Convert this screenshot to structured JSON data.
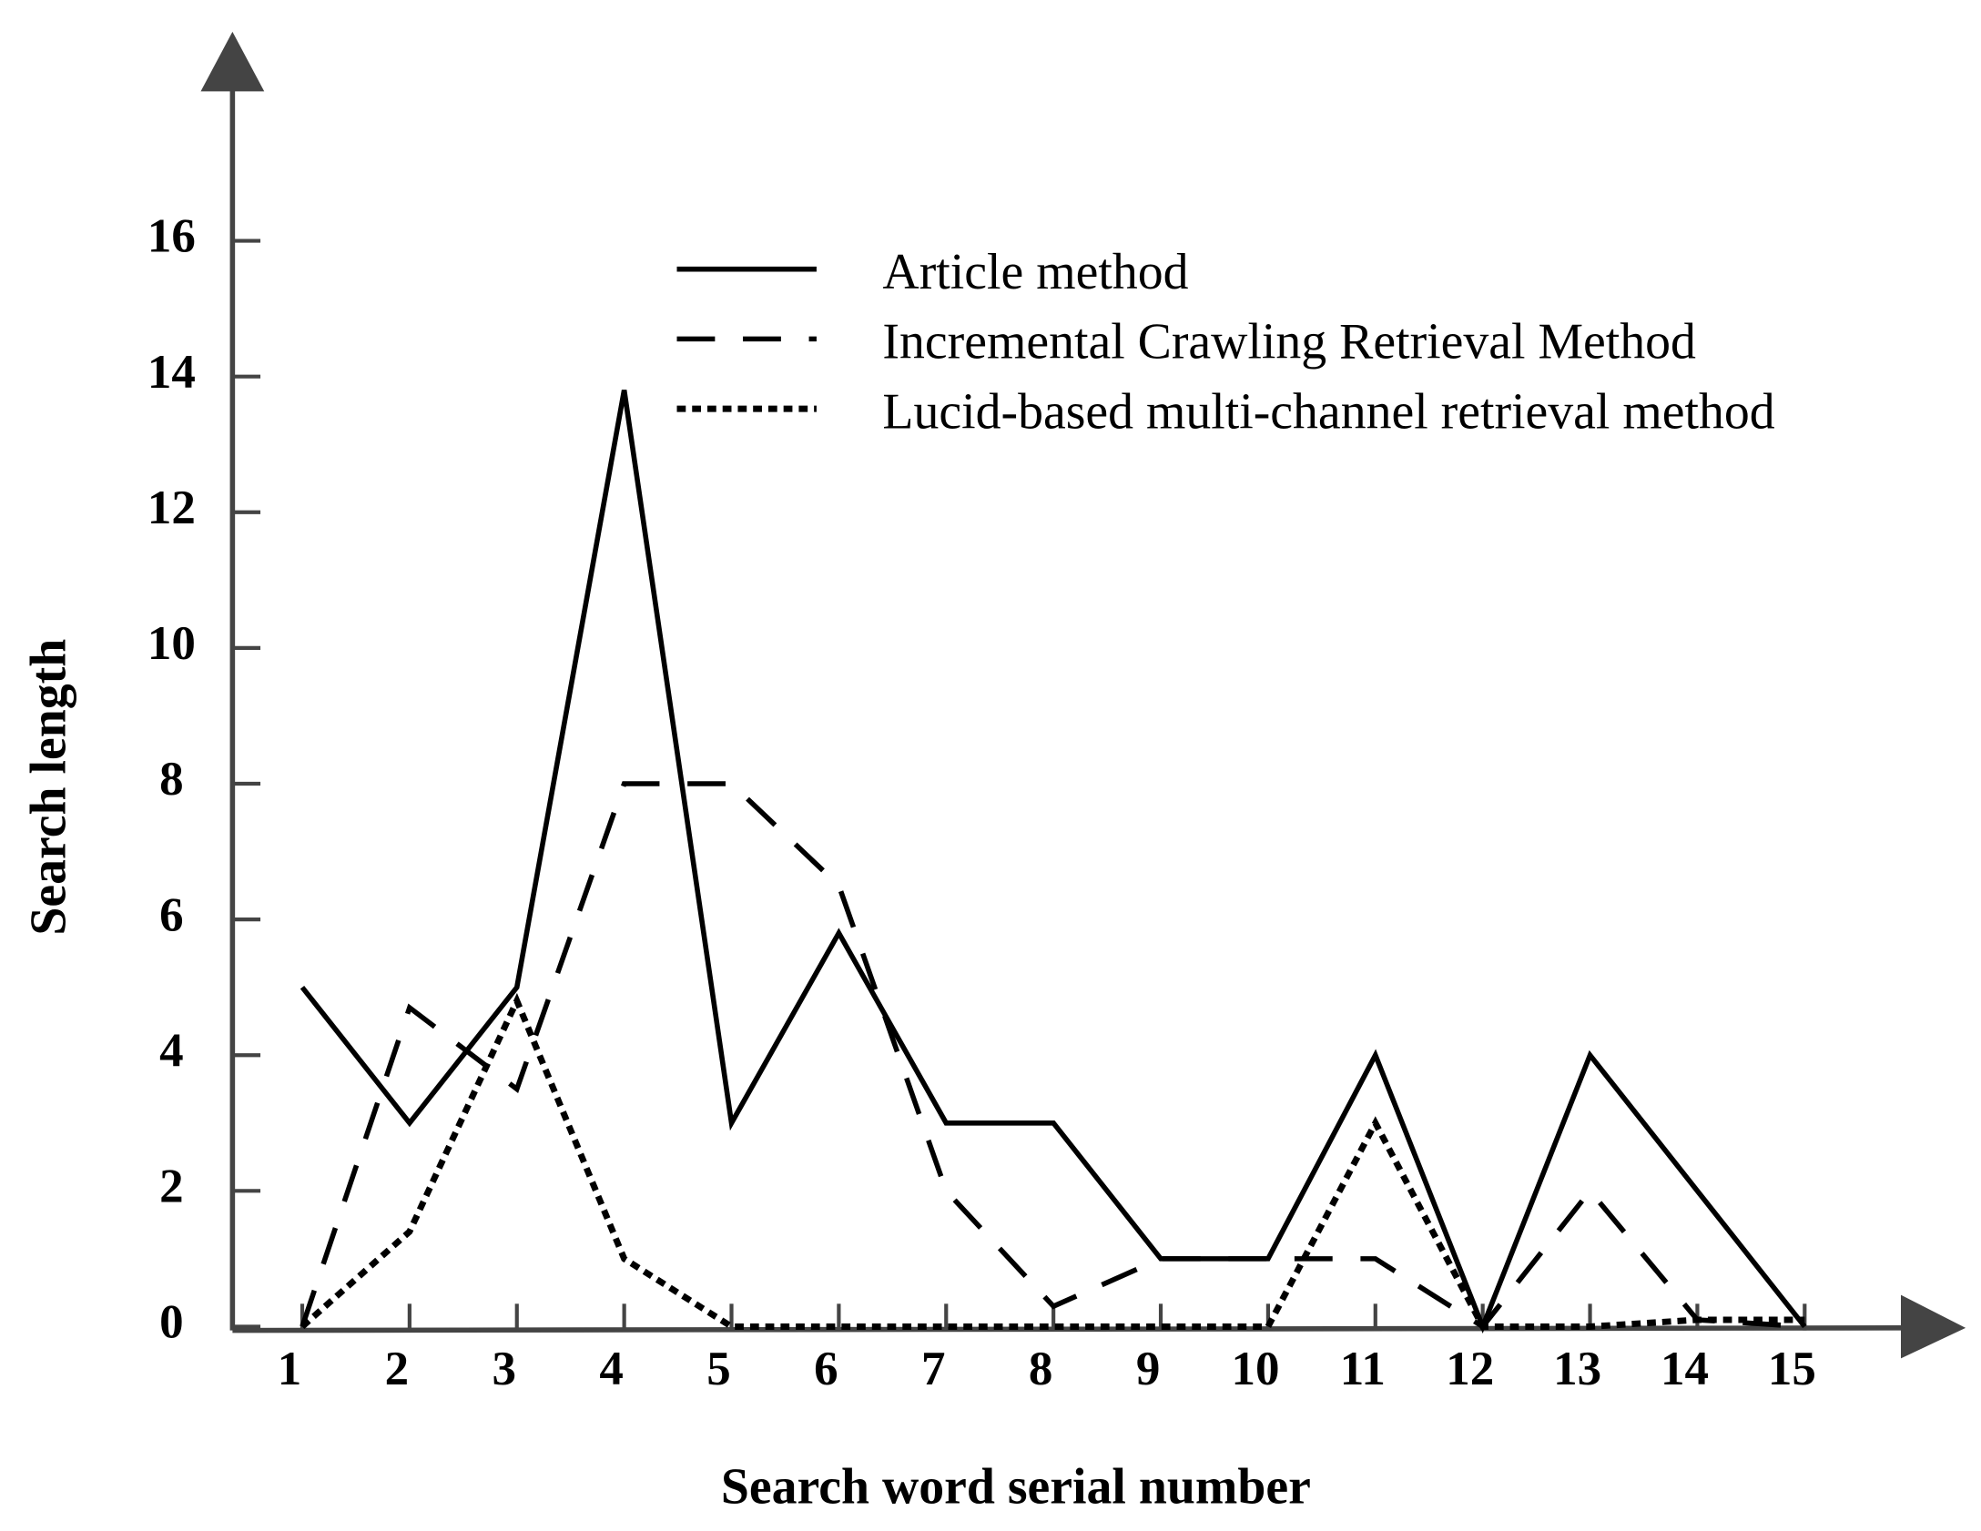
{
  "chart_data": {
    "type": "line",
    "xlabel": "Search word serial number",
    "ylabel": "Search length",
    "x": [
      1,
      2,
      3,
      4,
      5,
      6,
      7,
      8,
      9,
      10,
      11,
      12,
      13,
      14,
      15
    ],
    "xlim": [
      0.35,
      16.5
    ],
    "xticks": [
      1,
      2,
      3,
      4,
      5,
      6,
      7,
      8,
      9,
      10,
      11,
      12,
      13,
      14,
      15
    ],
    "ylim": [
      0,
      18.8
    ],
    "yticks": [
      0,
      2,
      4,
      6,
      8,
      10,
      12,
      14,
      16
    ],
    "legend": "top-right",
    "series": [
      {
        "name": "Article method",
        "color": "#000000",
        "style": "solid",
        "values": [
          5,
          3,
          5,
          13.8,
          3,
          5.8,
          3,
          3,
          1,
          1,
          4,
          0,
          4,
          2,
          0
        ]
      },
      {
        "name": "Incremental Crawling Retrieval Method",
        "color": "#000000",
        "style": "dashed",
        "values": [
          0,
          4.7,
          3.5,
          8,
          8,
          6.5,
          2,
          0.3,
          1,
          1,
          1,
          0,
          2,
          0.1,
          0
        ]
      },
      {
        "name": "Lucid-based multi-channel retrieval method",
        "color": "#000000",
        "style": "dotted",
        "values": [
          0,
          1.4,
          4.8,
          1,
          0,
          0,
          0,
          0,
          0,
          0,
          3,
          0,
          0,
          0.1,
          0.1
        ]
      }
    ]
  }
}
